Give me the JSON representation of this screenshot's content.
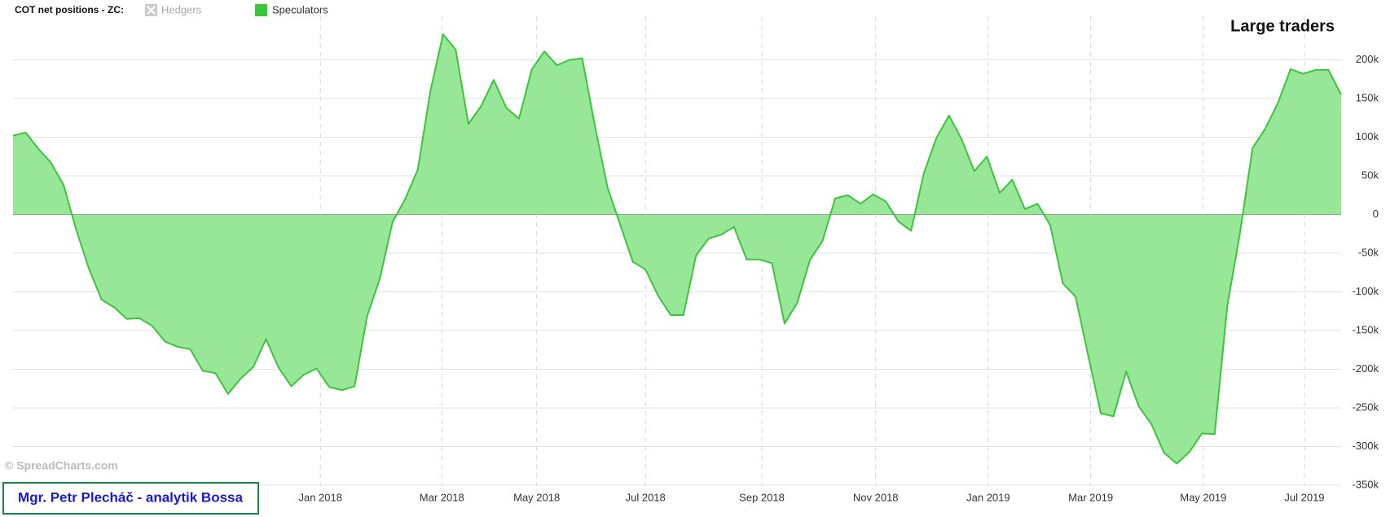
{
  "chart_data": {
    "type": "area",
    "title": "COT net positions - ZC:",
    "annotation": "Large traders",
    "watermark": "© SpreadCharts.com",
    "author": "Mgr. Petr Plecháč - analytik Bossa",
    "series": [
      {
        "name": "Hedgers",
        "color": "#bbbbbb",
        "visible": false,
        "values": []
      },
      {
        "name": "Speculators",
        "color": "#3cc43c",
        "fill": "#98e698",
        "visible": true,
        "values": [
          102000,
          106000,
          85000,
          67000,
          38000,
          -20000,
          -70000,
          -110000,
          -120000,
          -135000,
          -134000,
          -144000,
          -164000,
          -171000,
          -174000,
          -202000,
          -205000,
          -232000,
          -212000,
          -197000,
          -161000,
          -198000,
          -222000,
          -207000,
          -199000,
          -223000,
          -227000,
          -222000,
          -131000,
          -83000,
          -10000,
          20000,
          58000,
          160000,
          233000,
          213000,
          117000,
          140000,
          174000,
          138000,
          124000,
          187000,
          211000,
          193000,
          200000,
          202000,
          115000,
          35000,
          -13000,
          -61000,
          -71000,
          -105000,
          -130000,
          -130000,
          -53000,
          -31000,
          -26000,
          -16000,
          -58000,
          -58000,
          -63000,
          -141000,
          -114000,
          -59000,
          -34000,
          21000,
          25000,
          14000,
          26000,
          17000,
          -9000,
          -21000,
          53000,
          99000,
          128000,
          97000,
          56000,
          75000,
          28000,
          45000,
          7000,
          14000,
          -14000,
          -89000,
          -106000,
          -182000,
          -257000,
          -261000,
          -203000,
          -248000,
          -271000,
          -308000,
          -322000,
          -307000,
          -283000,
          -284000,
          -118000,
          -24000,
          86000,
          111000,
          144000,
          188000,
          182000,
          187000,
          187000,
          155000
        ]
      }
    ],
    "xlim": [
      0,
      105
    ],
    "xticks": [
      {
        "value": 24.3,
        "label": "Jan 2018"
      },
      {
        "value": 33.9,
        "label": "Mar 2018"
      },
      {
        "value": 41.4,
        "label": "May 2018"
      },
      {
        "value": 50.0,
        "label": "Jul 2018"
      },
      {
        "value": 59.2,
        "label": "Sep 2018"
      },
      {
        "value": 68.2,
        "label": "Nov 2018"
      },
      {
        "value": 77.1,
        "label": "Jan 2019"
      },
      {
        "value": 85.2,
        "label": "Mar 2019"
      },
      {
        "value": 94.1,
        "label": "May 2019"
      },
      {
        "value": 102.1,
        "label": "Jul 2019"
      }
    ],
    "ylim": [
      -350000,
      250000
    ],
    "yticks": [
      {
        "value": -350000,
        "label": "-350k"
      },
      {
        "value": -300000,
        "label": "-300k"
      },
      {
        "value": -250000,
        "label": "-250k"
      },
      {
        "value": -200000,
        "label": "-200k"
      },
      {
        "value": -150000,
        "label": "-150k"
      },
      {
        "value": -100000,
        "label": "-100k"
      },
      {
        "value": -50000,
        "label": "-50k"
      },
      0,
      {
        "value": 50000,
        "label": "50k"
      },
      {
        "value": 100000,
        "label": "100k"
      },
      {
        "value": 150000,
        "label": "150k"
      },
      {
        "value": 200000,
        "label": "200k"
      }
    ],
    "grid": true
  }
}
